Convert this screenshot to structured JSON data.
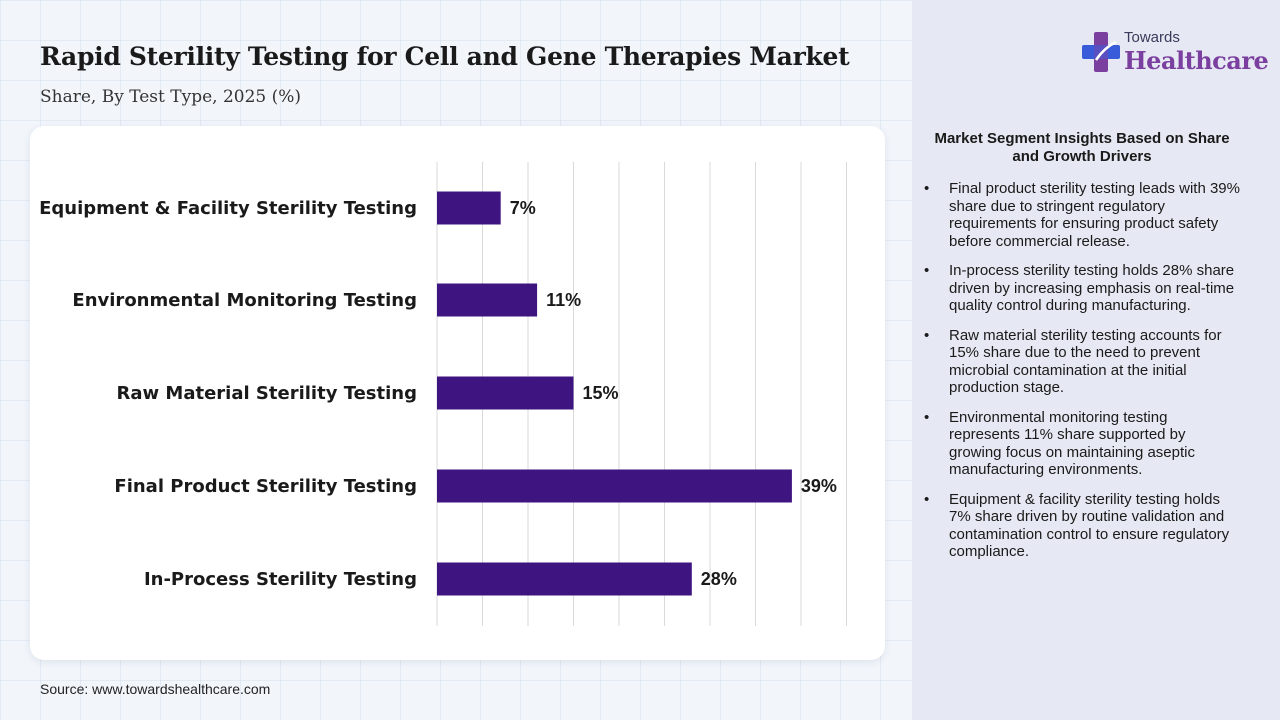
{
  "title": "Rapid Sterility Testing for Cell and Gene Therapies Market",
  "subtitle": "Share, By Test Type, 2025 (%)",
  "source": "Source: www.towardshealthcare.com",
  "logo": {
    "line1": "Towards",
    "line2": "Healthcare"
  },
  "colors": {
    "bar": "#3e1480",
    "grid": "#d9d9d9",
    "logo_purple": "#7b3fa0",
    "logo_blue": "#3a5bd9"
  },
  "chart_data": {
    "type": "bar",
    "orientation": "horizontal",
    "categories": [
      "Equipment & Facility Sterility Testing",
      "Environmental Monitoring Testing",
      "Raw Material Sterility Testing",
      "Final Product Sterility Testing",
      "In-Process Sterility Testing"
    ],
    "values": [
      7,
      11,
      15,
      39,
      28
    ],
    "value_labels": [
      "7%",
      "11%",
      "15%",
      "39%",
      "28%"
    ],
    "xlim": [
      0,
      45
    ],
    "grid": true,
    "legend": "none"
  },
  "insights": {
    "title": "Market Segment Insights Based on Share and Growth Drivers",
    "bullet": "•",
    "items": [
      "Final product sterility testing leads with 39% share due to stringent regulatory requirements for ensuring product safety before commercial release.",
      "In-process sterility testing holds 28% share driven by increasing emphasis on real-time quality control during manufacturing.",
      "Raw material sterility testing accounts for 15% share due to the need to prevent microbial contamination at the initial production stage.",
      "Environmental monitoring testing represents 11% share supported by growing focus on maintaining aseptic manufacturing environments.",
      "Equipment & facility sterility testing holds 7% share driven by routine validation and contamination control to ensure regulatory compliance."
    ]
  }
}
